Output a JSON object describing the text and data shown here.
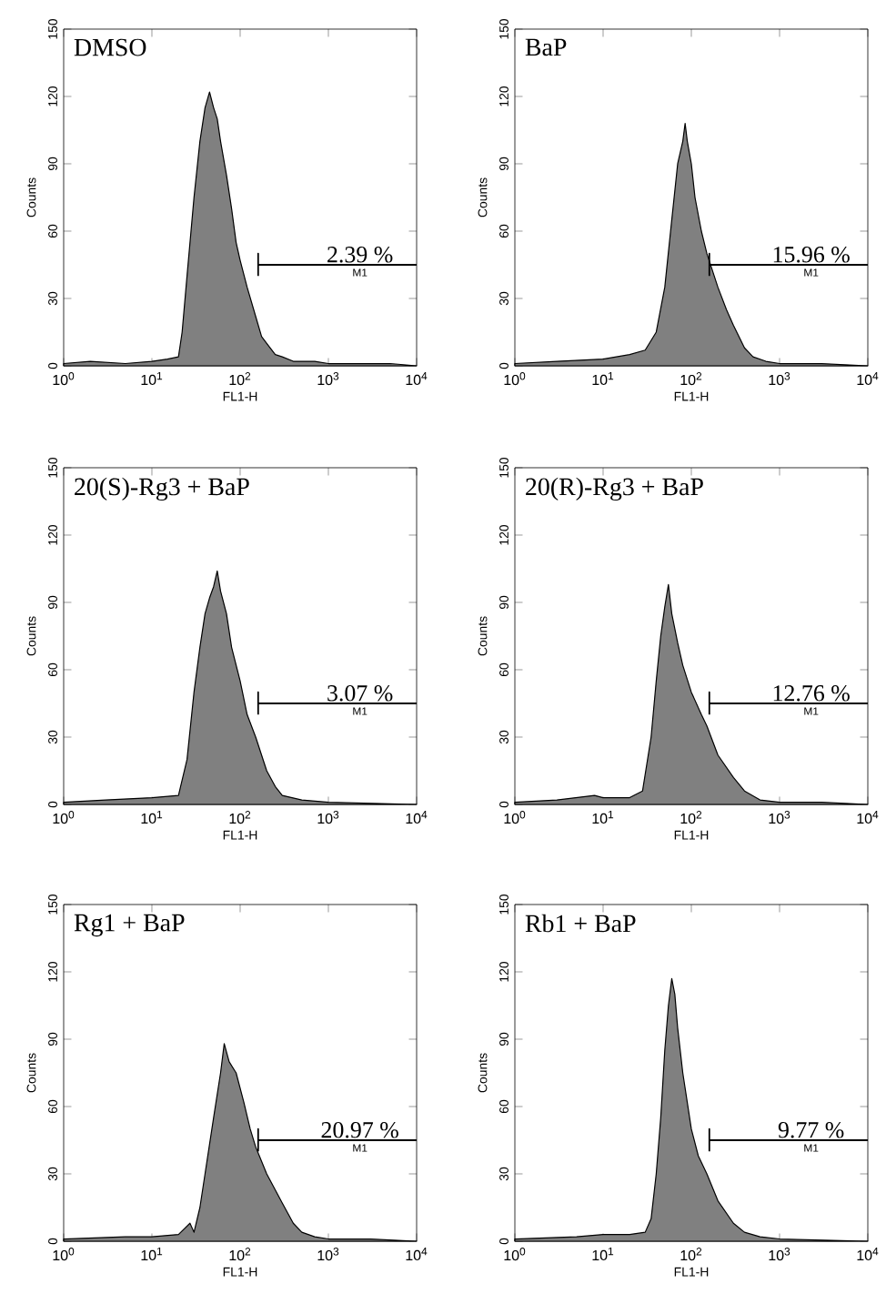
{
  "chart_data": [
    {
      "type": "area",
      "title": "DMSO",
      "xlabel": "FL1-H",
      "ylabel": "Counts",
      "log": "x",
      "xlim": [
        1,
        10000
      ],
      "ylim": [
        0,
        150
      ],
      "xticks": [
        {
          "value": 1,
          "label": "10$^{0}$"
        },
        {
          "value": 10,
          "label": "10$^{1}$"
        },
        {
          "value": 100,
          "label": "10$^{2}$"
        },
        {
          "value": 1000,
          "label": "10$^{3}$"
        },
        {
          "value": 10000,
          "label": "10$^{4}$"
        }
      ],
      "yticks": [
        0,
        30,
        60,
        90,
        120,
        150
      ],
      "series": [
        {
          "color": "#808080",
          "x": [
            1,
            2,
            5,
            10,
            15,
            20,
            22,
            25,
            30,
            35,
            40,
            45,
            50,
            55,
            60,
            70,
            80,
            90,
            100,
            120,
            150,
            175,
            200,
            250,
            300,
            400,
            700,
            1000,
            3000,
            5000,
            10000
          ],
          "values": [
            1,
            2,
            1,
            2,
            3,
            4,
            15,
            40,
            75,
            100,
            115,
            122,
            115,
            110,
            100,
            85,
            70,
            55,
            47,
            35,
            22,
            13,
            10,
            5,
            4,
            2,
            2,
            1,
            1,
            1,
            0
          ]
        },
        {
          "name": "M1",
          "type": "line",
          "color": "#000000",
          "x": [
            160,
            160,
            160,
            10000
          ],
          "values": [
            40,
            50,
            45,
            45
          ]
        }
      ],
      "annotations": [
        "2.39 %"
      ]
    },
    {
      "type": "area",
      "title": "BaP",
      "xlabel": "FL1-H",
      "ylabel": "Counts",
      "log": "x",
      "xlim": [
        1,
        10000
      ],
      "ylim": [
        0,
        150
      ],
      "xticks": [
        {
          "value": 1,
          "label": "10$^{0}$"
        },
        {
          "value": 10,
          "label": "10$^{1}$"
        },
        {
          "value": 100,
          "label": "10$^{2}$"
        },
        {
          "value": 1000,
          "label": "10$^{3}$"
        },
        {
          "value": 10000,
          "label": "10$^{4}$"
        }
      ],
      "yticks": [
        0,
        30,
        60,
        90,
        120,
        150
      ],
      "series": [
        {
          "color": "#808080",
          "x": [
            1,
            3,
            10,
            20,
            30,
            40,
            50,
            60,
            70,
            80,
            85,
            90,
            100,
            110,
            130,
            150,
            200,
            250,
            300,
            400,
            500,
            700,
            1000,
            3000,
            10000
          ],
          "values": [
            1,
            2,
            3,
            5,
            7,
            15,
            35,
            65,
            90,
            100,
            108,
            100,
            90,
            75,
            60,
            50,
            35,
            25,
            18,
            8,
            4,
            2,
            1,
            1,
            0
          ]
        },
        {
          "name": "M1",
          "type": "line",
          "color": "#000000",
          "x": [
            160,
            160,
            160,
            10000
          ],
          "values": [
            40,
            50,
            45,
            45
          ]
        }
      ],
      "annotations": [
        "15.96 %"
      ]
    },
    {
      "type": "area",
      "title": "20(S)-Rg3 + BaP",
      "xlabel": "FL1-H",
      "ylabel": "Counts",
      "log": "x",
      "xlim": [
        1,
        10000
      ],
      "ylim": [
        0,
        150
      ],
      "xticks": [
        {
          "value": 1,
          "label": "10$^{0}$"
        },
        {
          "value": 10,
          "label": "10$^{1}$"
        },
        {
          "value": 100,
          "label": "10$^{2}$"
        },
        {
          "value": 1000,
          "label": "10$^{3}$"
        },
        {
          "value": 10000,
          "label": "10$^{4}$"
        }
      ],
      "yticks": [
        0,
        30,
        60,
        90,
        120,
        150
      ],
      "series": [
        {
          "color": "#808080",
          "x": [
            1,
            3,
            10,
            20,
            25,
            30,
            35,
            40,
            45,
            50,
            55,
            60,
            70,
            80,
            100,
            120,
            150,
            200,
            250,
            300,
            500,
            1000,
            10000
          ],
          "values": [
            1,
            2,
            3,
            4,
            20,
            50,
            70,
            85,
            92,
            97,
            104,
            95,
            85,
            70,
            55,
            40,
            30,
            15,
            8,
            4,
            2,
            1,
            0
          ]
        },
        {
          "name": "M1",
          "type": "line",
          "color": "#000000",
          "x": [
            160,
            160,
            160,
            10000
          ],
          "values": [
            40,
            50,
            45,
            45
          ]
        }
      ],
      "annotations": [
        "3.07 %"
      ]
    },
    {
      "type": "area",
      "title": "20(R)-Rg3 + BaP",
      "xlabel": "FL1-H",
      "ylabel": "Counts",
      "log": "x",
      "xlim": [
        1,
        10000
      ],
      "ylim": [
        0,
        150
      ],
      "xticks": [
        {
          "value": 1,
          "label": "10$^{0}$"
        },
        {
          "value": 10,
          "label": "10$^{1}$"
        },
        {
          "value": 100,
          "label": "10$^{2}$"
        },
        {
          "value": 1000,
          "label": "10$^{3}$"
        },
        {
          "value": 10000,
          "label": "10$^{4}$"
        }
      ],
      "yticks": [
        0,
        30,
        60,
        90,
        120,
        150
      ],
      "series": [
        {
          "color": "#808080",
          "x": [
            1,
            3,
            8,
            10,
            20,
            28,
            35,
            40,
            45,
            50,
            55,
            60,
            70,
            80,
            100,
            130,
            150,
            200,
            300,
            400,
            600,
            1000,
            3000,
            10000
          ],
          "values": [
            1,
            2,
            4,
            3,
            3,
            6,
            30,
            55,
            75,
            88,
            98,
            85,
            72,
            62,
            50,
            40,
            35,
            22,
            12,
            6,
            2,
            1,
            1,
            0
          ]
        },
        {
          "name": "M1",
          "type": "line",
          "color": "#000000",
          "x": [
            160,
            160,
            160,
            10000
          ],
          "values": [
            40,
            50,
            45,
            45
          ]
        }
      ],
      "annotations": [
        "12.76 %"
      ]
    },
    {
      "type": "area",
      "title": "Rg1 + BaP",
      "xlabel": "FL1-H",
      "ylabel": "Counts",
      "log": "x",
      "xlim": [
        1,
        10000
      ],
      "ylim": [
        0,
        150
      ],
      "xticks": [
        {
          "value": 1,
          "label": "10$^{0}$"
        },
        {
          "value": 10,
          "label": "10$^{1}$"
        },
        {
          "value": 100,
          "label": "10$^{2}$"
        },
        {
          "value": 1000,
          "label": "10$^{3}$"
        },
        {
          "value": 10000,
          "label": "10$^{4}$"
        }
      ],
      "yticks": [
        0,
        30,
        60,
        90,
        120,
        150
      ],
      "series": [
        {
          "color": "#808080",
          "x": [
            1,
            5,
            10,
            20,
            27,
            30,
            35,
            40,
            50,
            60,
            66,
            75,
            90,
            110,
            130,
            150,
            200,
            300,
            400,
            500,
            700,
            1000,
            3000,
            10000
          ],
          "values": [
            1,
            2,
            2,
            3,
            8,
            4,
            15,
            30,
            55,
            75,
            88,
            80,
            75,
            62,
            50,
            42,
            30,
            17,
            8,
            4,
            2,
            1,
            1,
            0
          ]
        },
        {
          "name": "M1",
          "type": "line",
          "color": "#000000",
          "x": [
            160,
            160,
            160,
            10000
          ],
          "values": [
            40,
            50,
            45,
            45
          ]
        }
      ],
      "annotations": [
        "20.97 %"
      ]
    },
    {
      "type": "area",
      "title": "Rb1 + BaP",
      "xlabel": "FL1-H",
      "ylabel": "Counts",
      "log": "x",
      "xlim": [
        1,
        10000
      ],
      "ylim": [
        0,
        150
      ],
      "xticks": [
        {
          "value": 1,
          "label": "10$^{0}$"
        },
        {
          "value": 10,
          "label": "10$^{1}$"
        },
        {
          "value": 100,
          "label": "10$^{2}$"
        },
        {
          "value": 1000,
          "label": "10$^{3}$"
        },
        {
          "value": 10000,
          "label": "10$^{4}$"
        }
      ],
      "yticks": [
        0,
        30,
        60,
        90,
        120,
        150
      ],
      "series": [
        {
          "color": "#808080",
          "x": [
            1,
            5,
            10,
            20,
            30,
            35,
            40,
            45,
            50,
            55,
            60,
            65,
            70,
            80,
            100,
            120,
            150,
            200,
            300,
            400,
            600,
            1000,
            10000
          ],
          "values": [
            1,
            2,
            3,
            3,
            4,
            10,
            30,
            55,
            85,
            105,
            117,
            110,
            95,
            75,
            50,
            38,
            30,
            18,
            8,
            4,
            2,
            1,
            0
          ]
        },
        {
          "name": "M1",
          "type": "line",
          "color": "#000000",
          "x": [
            160,
            160,
            160,
            10000
          ],
          "values": [
            40,
            50,
            45,
            45
          ]
        }
      ],
      "annotations": [
        "9.77 %"
      ]
    }
  ]
}
